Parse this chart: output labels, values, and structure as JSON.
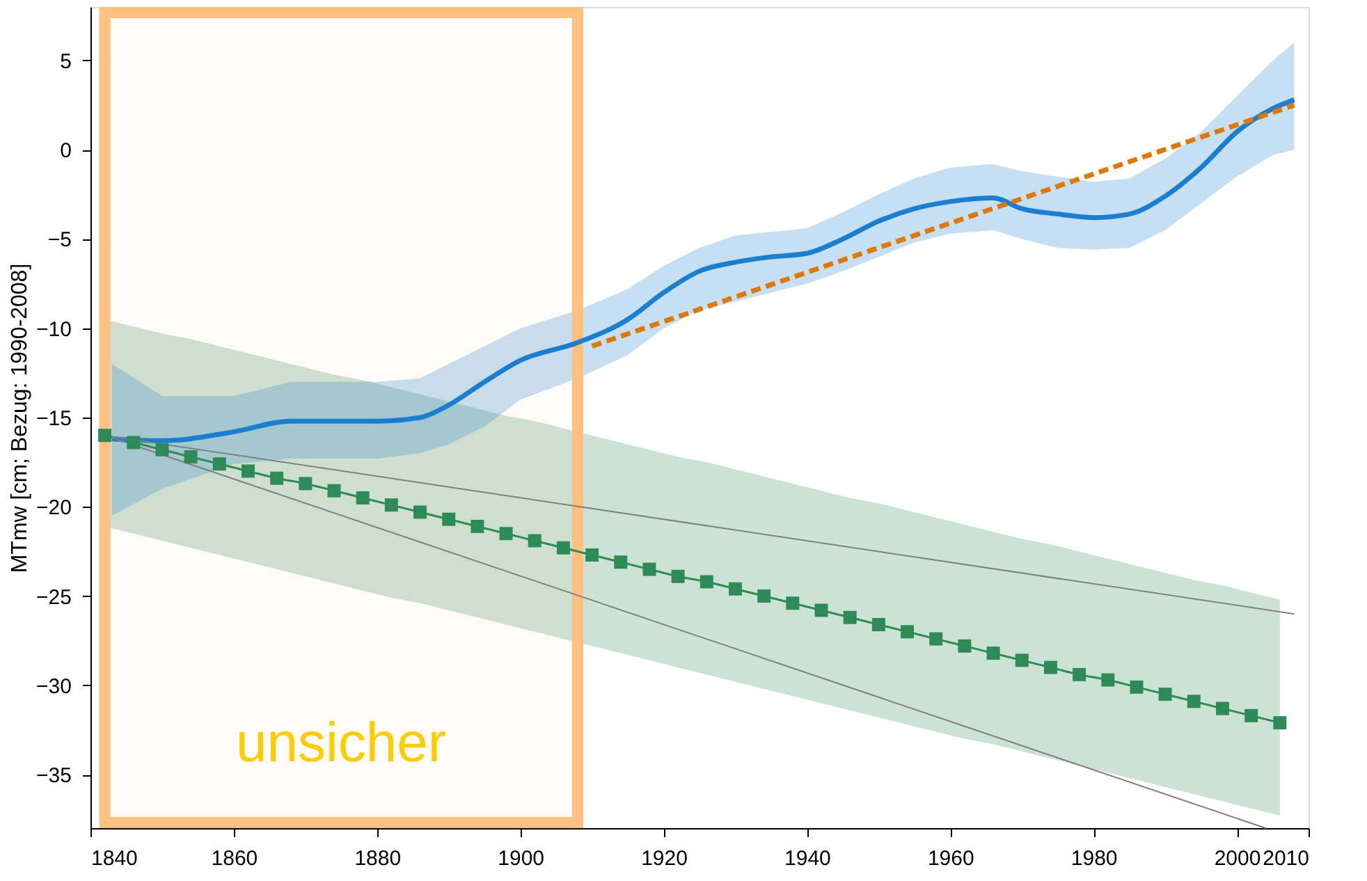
{
  "chart_data": {
    "type": "line",
    "ylabel": "MTmw [cm; Bezug: 1990-2008]",
    "xlim": [
      1840,
      2010
    ],
    "xticks": [
      1840,
      1860,
      1880,
      1900,
      1920,
      1940,
      1960,
      1980,
      2000,
      2010
    ],
    "ylim": [
      -38,
      8
    ],
    "yticks": [
      -35,
      -30,
      -25,
      -20,
      -15,
      -10,
      -5,
      0,
      5
    ],
    "grid": false,
    "bands": [
      {
        "axis": "x",
        "from": 1842,
        "to": 1908,
        "label": "unsicher",
        "color": "#ffc080"
      }
    ],
    "series": [
      {
        "color": "#2e8b57",
        "marker": "square",
        "line_style": "solid",
        "x": [
          1842,
          1846,
          1850,
          1854,
          1858,
          1862,
          1866,
          1870,
          1874,
          1878,
          1882,
          1886,
          1890,
          1894,
          1898,
          1902,
          1906,
          1910,
          1914,
          1918,
          1922,
          1926,
          1930,
          1934,
          1938,
          1942,
          1946,
          1950,
          1954,
          1958,
          1962,
          1966,
          1970,
          1974,
          1978,
          1982,
          1986,
          1990,
          1994,
          1998,
          2002,
          2006
        ],
        "values": [
          -16.0,
          -16.4,
          -16.8,
          -17.2,
          -17.6,
          -18.0,
          -18.4,
          -18.7,
          -19.1,
          -19.5,
          -19.9,
          -20.3,
          -20.7,
          -21.1,
          -21.5,
          -21.9,
          -22.3,
          -22.7,
          -23.1,
          -23.5,
          -23.9,
          -24.2,
          -24.6,
          -25.0,
          -25.4,
          -25.8,
          -26.2,
          -26.6,
          -27.0,
          -27.4,
          -27.8,
          -28.2,
          -28.6,
          -29.0,
          -29.4,
          -29.7,
          -30.1,
          -30.5,
          -30.9,
          -31.3,
          -31.7,
          -32.1
        ],
        "upper": [
          -9.5,
          -9.9,
          -10.3,
          -10.6,
          -11.0,
          -11.4,
          -11.8,
          -12.2,
          -12.6,
          -12.9,
          -13.3,
          -13.7,
          -14.1,
          -14.5,
          -14.9,
          -15.2,
          -15.6,
          -16.0,
          -16.4,
          -16.8,
          -17.2,
          -17.5,
          -17.9,
          -18.3,
          -18.7,
          -19.1,
          -19.5,
          -19.8,
          -20.2,
          -20.6,
          -21.0,
          -21.4,
          -21.8,
          -22.1,
          -22.5,
          -22.9,
          -23.3,
          -23.7,
          -24.1,
          -24.4,
          -24.8,
          -25.2
        ],
        "lower": [
          -21.1,
          -21.5,
          -21.9,
          -22.3,
          -22.7,
          -23.1,
          -23.5,
          -23.9,
          -24.3,
          -24.7,
          -25.1,
          -25.4,
          -25.8,
          -26.2,
          -26.6,
          -27.0,
          -27.4,
          -27.8,
          -28.2,
          -28.6,
          -29.0,
          -29.4,
          -29.8,
          -30.2,
          -30.6,
          -31.0,
          -31.4,
          -31.8,
          -32.2,
          -32.6,
          -33.0,
          -33.3,
          -33.7,
          -34.1,
          -34.5,
          -34.9,
          -35.3,
          -35.7,
          -36.1,
          -36.5,
          -36.9,
          -37.3
        ]
      },
      {
        "color": "#1b7fd0",
        "line_style": "solid",
        "marker": "none",
        "x": [
          1843,
          1850,
          1860,
          1868,
          1880,
          1886,
          1890,
          1895,
          1900,
          1908,
          1915,
          1920,
          1925,
          1930,
          1935,
          1940,
          1945,
          1950,
          1955,
          1960,
          1966,
          1970,
          1975,
          1980,
          1985,
          1990,
          1995,
          2000,
          2005,
          2008
        ],
        "values": [
          -16.2,
          -16.3,
          -15.8,
          -15.2,
          -15.2,
          -15.0,
          -14.3,
          -13.0,
          -11.8,
          -10.8,
          -9.5,
          -8.0,
          -6.8,
          -6.3,
          -6.0,
          -5.8,
          -5.0,
          -4.0,
          -3.3,
          -2.9,
          -2.7,
          -3.3,
          -3.6,
          -3.8,
          -3.6,
          -2.6,
          -1.0,
          1.0,
          2.3,
          2.8
        ],
        "upper": [
          -12.0,
          -13.8,
          -13.8,
          -13.0,
          -13.0,
          -12.8,
          -12.0,
          -11.0,
          -10.0,
          -9.0,
          -7.8,
          -6.5,
          -5.5,
          -4.8,
          -4.6,
          -4.4,
          -3.5,
          -2.5,
          -1.6,
          -1.0,
          -0.8,
          -1.2,
          -1.5,
          -1.8,
          -1.6,
          -0.5,
          1.0,
          3.0,
          5.0,
          6.0
        ],
        "lower": [
          -20.5,
          -19.0,
          -17.6,
          -17.3,
          -17.3,
          -17.0,
          -16.5,
          -15.5,
          -14.0,
          -12.8,
          -11.5,
          -10.0,
          -9.0,
          -8.5,
          -8.0,
          -7.5,
          -6.8,
          -6.0,
          -5.2,
          -4.7,
          -4.5,
          -5.0,
          -5.5,
          -5.6,
          -5.5,
          -4.5,
          -3.0,
          -1.5,
          -0.3,
          0.0
        ]
      },
      {
        "color": "#e07800",
        "line_style": "dashed",
        "marker": "none",
        "x": [
          1910,
          2008
        ],
        "values": [
          -11.0,
          2.5
        ]
      },
      {
        "color": "#808080",
        "line_style": "solid",
        "marker": "none",
        "x": [
          1842,
          2008
        ],
        "values": [
          -16.0,
          -26.0
        ]
      },
      {
        "color": "#808080",
        "line_style": "solid",
        "marker": "none",
        "x": [
          1842,
          2004
        ],
        "values": [
          -16.0,
          -38.0
        ]
      }
    ]
  }
}
